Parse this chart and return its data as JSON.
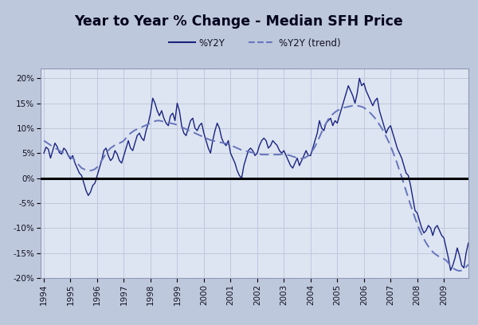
{
  "title": "Year to Year % Change - Median SFH Price",
  "legend_solid": "%Y2Y",
  "legend_dashed": "%Y2Y (trend)",
  "background_outer": "#bec8dc",
  "background_inner": "#dde5f2",
  "line_color": "#1a237e",
  "trend_color": "#6674bb",
  "zero_line_color": "#000000",
  "grid_color": "#c0c8dc",
  "ylim": [
    -20,
    22
  ],
  "yticks": [
    -20,
    -15,
    -10,
    -5,
    0,
    5,
    10,
    15,
    20
  ],
  "ytick_labels": [
    "-20%",
    "-15%",
    "-10%",
    "-5%",
    "0%",
    "5%",
    "10%",
    "15%",
    "20%"
  ],
  "dates": [
    1994.0,
    1994.083,
    1994.167,
    1994.25,
    1994.333,
    1994.417,
    1994.5,
    1994.583,
    1994.667,
    1994.75,
    1994.833,
    1994.917,
    1995.0,
    1995.083,
    1995.167,
    1995.25,
    1995.333,
    1995.417,
    1995.5,
    1995.583,
    1995.667,
    1995.75,
    1995.833,
    1995.917,
    1996.0,
    1996.083,
    1996.167,
    1996.25,
    1996.333,
    1996.417,
    1996.5,
    1996.583,
    1996.667,
    1996.75,
    1996.833,
    1996.917,
    1997.0,
    1997.083,
    1997.167,
    1997.25,
    1997.333,
    1997.417,
    1997.5,
    1997.583,
    1997.667,
    1997.75,
    1997.833,
    1997.917,
    1998.0,
    1998.083,
    1998.167,
    1998.25,
    1998.333,
    1998.417,
    1998.5,
    1998.583,
    1998.667,
    1998.75,
    1998.833,
    1998.917,
    1999.0,
    1999.083,
    1999.167,
    1999.25,
    1999.333,
    1999.417,
    1999.5,
    1999.583,
    1999.667,
    1999.75,
    1999.833,
    1999.917,
    2000.0,
    2000.083,
    2000.167,
    2000.25,
    2000.333,
    2000.417,
    2000.5,
    2000.583,
    2000.667,
    2000.75,
    2000.833,
    2000.917,
    2001.0,
    2001.083,
    2001.167,
    2001.25,
    2001.333,
    2001.417,
    2001.5,
    2001.583,
    2001.667,
    2001.75,
    2001.833,
    2001.917,
    2002.0,
    2002.083,
    2002.167,
    2002.25,
    2002.333,
    2002.417,
    2002.5,
    2002.583,
    2002.667,
    2002.75,
    2002.833,
    2002.917,
    2003.0,
    2003.083,
    2003.167,
    2003.25,
    2003.333,
    2003.417,
    2003.5,
    2003.583,
    2003.667,
    2003.75,
    2003.833,
    2003.917,
    2004.0,
    2004.083,
    2004.167,
    2004.25,
    2004.333,
    2004.417,
    2004.5,
    2004.583,
    2004.667,
    2004.75,
    2004.833,
    2004.917,
    2005.0,
    2005.083,
    2005.167,
    2005.25,
    2005.333,
    2005.417,
    2005.5,
    2005.583,
    2005.667,
    2005.75,
    2005.833,
    2005.917,
    2006.0,
    2006.083,
    2006.167,
    2006.25,
    2006.333,
    2006.417,
    2006.5,
    2006.583,
    2006.667,
    2006.75,
    2006.833,
    2006.917,
    2007.0,
    2007.083,
    2007.167,
    2007.25,
    2007.333,
    2007.417,
    2007.5,
    2007.583,
    2007.667,
    2007.75,
    2007.833,
    2007.917,
    2008.0,
    2008.083,
    2008.167,
    2008.25,
    2008.333,
    2008.417,
    2008.5,
    2008.583,
    2008.667,
    2008.75,
    2008.833,
    2008.917,
    2009.0,
    2009.083,
    2009.167,
    2009.25,
    2009.333,
    2009.417,
    2009.5,
    2009.583,
    2009.667,
    2009.75,
    2009.833,
    2009.917
  ],
  "yoy": [
    5.0,
    6.2,
    5.8,
    4.0,
    5.5,
    7.0,
    6.3,
    5.1,
    4.8,
    6.0,
    5.5,
    4.5,
    3.8,
    4.5,
    3.0,
    2.0,
    1.0,
    0.5,
    -1.0,
    -2.5,
    -3.5,
    -2.8,
    -1.5,
    -1.0,
    0.5,
    2.0,
    3.5,
    5.5,
    6.0,
    4.5,
    3.5,
    4.0,
    5.5,
    4.8,
    3.5,
    3.0,
    4.5,
    6.0,
    7.5,
    6.0,
    5.5,
    7.0,
    8.5,
    9.0,
    8.0,
    7.5,
    9.5,
    11.0,
    13.0,
    16.0,
    15.0,
    13.5,
    12.5,
    13.5,
    12.0,
    11.0,
    10.5,
    12.5,
    13.0,
    11.5,
    15.0,
    13.5,
    10.5,
    9.0,
    8.5,
    10.0,
    11.5,
    12.0,
    10.0,
    9.5,
    10.5,
    11.0,
    9.0,
    7.5,
    6.0,
    5.0,
    7.5,
    9.5,
    11.0,
    10.0,
    8.0,
    7.0,
    6.5,
    7.5,
    5.0,
    4.0,
    3.0,
    1.5,
    0.5,
    0.0,
    2.5,
    4.0,
    5.5,
    6.0,
    5.5,
    4.5,
    5.0,
    6.5,
    7.5,
    8.0,
    7.5,
    6.0,
    6.5,
    7.5,
    7.0,
    6.5,
    5.5,
    5.0,
    5.5,
    4.5,
    3.5,
    2.5,
    2.0,
    3.0,
    4.0,
    2.5,
    3.5,
    4.5,
    5.5,
    4.5,
    4.5,
    6.0,
    7.5,
    9.0,
    11.5,
    10.0,
    9.5,
    11.0,
    11.5,
    12.0,
    10.5,
    11.5,
    11.0,
    12.5,
    14.0,
    15.5,
    17.0,
    18.5,
    17.5,
    16.5,
    15.0,
    17.0,
    20.0,
    18.5,
    19.0,
    17.5,
    16.5,
    15.5,
    14.5,
    15.5,
    16.0,
    13.5,
    12.0,
    10.5,
    9.0,
    10.0,
    10.5,
    9.0,
    7.5,
    6.0,
    5.0,
    4.0,
    2.5,
    1.0,
    0.5,
    -1.5,
    -4.0,
    -6.5,
    -7.0,
    -8.5,
    -10.0,
    -11.0,
    -10.5,
    -9.5,
    -10.0,
    -11.5,
    -10.0,
    -9.5,
    -10.5,
    -11.5,
    -12.0,
    -14.0,
    -16.0,
    -18.5,
    -17.5,
    -16.0,
    -14.0,
    -15.5,
    -17.5,
    -18.0,
    -15.0,
    -13.0
  ],
  "trend": [
    7.5,
    7.2,
    6.9,
    6.6,
    6.3,
    6.0,
    5.8,
    5.5,
    5.2,
    5.0,
    4.8,
    4.5,
    4.2,
    4.0,
    3.5,
    3.0,
    2.5,
    2.0,
    1.8,
    1.6,
    1.5,
    1.5,
    1.6,
    1.8,
    2.2,
    2.8,
    3.5,
    4.2,
    5.0,
    5.5,
    6.0,
    6.3,
    6.6,
    6.9,
    7.0,
    7.2,
    7.5,
    8.0,
    8.5,
    9.0,
    9.3,
    9.6,
    9.8,
    10.0,
    10.2,
    10.4,
    10.6,
    10.8,
    11.0,
    11.2,
    11.4,
    11.5,
    11.5,
    11.4,
    11.3,
    11.2,
    11.1,
    11.0,
    10.9,
    10.8,
    10.6,
    10.4,
    10.2,
    10.0,
    9.8,
    9.6,
    9.4,
    9.2,
    9.0,
    8.8,
    8.6,
    8.4,
    8.2,
    8.0,
    7.8,
    7.6,
    7.5,
    7.4,
    7.3,
    7.2,
    7.1,
    7.0,
    6.9,
    6.8,
    6.6,
    6.4,
    6.2,
    6.0,
    5.8,
    5.6,
    5.5,
    5.4,
    5.3,
    5.2,
    5.1,
    5.0,
    4.9,
    4.8,
    4.7,
    4.7,
    4.7,
    4.7,
    4.7,
    4.7,
    4.7,
    4.7,
    4.7,
    4.8,
    4.8,
    4.7,
    4.6,
    4.5,
    4.3,
    4.2,
    4.0,
    3.9,
    3.9,
    4.0,
    4.2,
    4.5,
    5.0,
    5.6,
    6.3,
    7.2,
    8.2,
    9.2,
    10.2,
    11.0,
    11.8,
    12.4,
    12.8,
    13.2,
    13.5,
    13.7,
    13.9,
    14.1,
    14.2,
    14.3,
    14.4,
    14.5,
    14.5,
    14.5,
    14.4,
    14.3,
    14.1,
    13.8,
    13.4,
    13.0,
    12.5,
    12.0,
    11.4,
    10.7,
    10.0,
    9.2,
    8.3,
    7.4,
    6.4,
    5.3,
    4.1,
    2.9,
    1.5,
    0.2,
    -1.2,
    -2.6,
    -4.0,
    -5.4,
    -6.7,
    -8.0,
    -9.2,
    -10.3,
    -11.3,
    -12.2,
    -13.0,
    -13.7,
    -14.3,
    -14.8,
    -15.2,
    -15.5,
    -15.8,
    -16.0,
    -16.2,
    -16.5,
    -17.0,
    -17.5,
    -18.0,
    -18.3,
    -18.5,
    -18.6,
    -18.5,
    -18.2,
    -17.8,
    -17.3
  ],
  "xlim_left": 1993.88,
  "xlim_right": 2009.92,
  "xtick_years": [
    1994,
    1995,
    1996,
    1997,
    1998,
    1999,
    2000,
    2001,
    2002,
    2003,
    2004,
    2005,
    2006,
    2007,
    2008,
    2009
  ]
}
